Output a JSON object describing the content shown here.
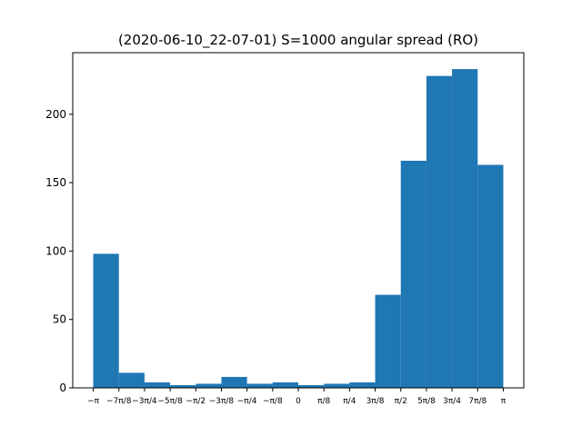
{
  "chart_data": {
    "type": "bar",
    "title": "(2020-06-10_22-07-01) S=1000 angular spread (RO)",
    "xlabel": "",
    "ylabel": "",
    "xlim": [
      -3.4558,
      3.4558
    ],
    "ylim": [
      0,
      245
    ],
    "grid": false,
    "bin_edges": [
      -3.14159,
      -2.74889,
      -2.35619,
      -1.9635,
      -1.5708,
      -1.1781,
      -0.7854,
      -0.3927,
      0.0,
      0.3927,
      0.7854,
      1.1781,
      1.5708,
      1.9635,
      2.35619,
      2.74889,
      3.14159
    ],
    "values": [
      98,
      11,
      4,
      2,
      3,
      8,
      3,
      4,
      2,
      3,
      4,
      68,
      166,
      228,
      233,
      163
    ],
    "bar_color": "#1f77b4",
    "yticks": [
      {
        "value": 0,
        "label": "0"
      },
      {
        "value": 50,
        "label": "50"
      },
      {
        "value": 100,
        "label": "100"
      },
      {
        "value": 150,
        "label": "150"
      },
      {
        "value": 200,
        "label": "200"
      }
    ],
    "xticks": [
      {
        "value": -3.14159,
        "label": "−π"
      },
      {
        "value": -2.74889,
        "label": "−7π/8"
      },
      {
        "value": -2.35619,
        "label": "−3π/4"
      },
      {
        "value": -1.9635,
        "label": "−5π/8"
      },
      {
        "value": -1.5708,
        "label": "−π/2"
      },
      {
        "value": -1.1781,
        "label": "−3π/8"
      },
      {
        "value": -0.7854,
        "label": "−π/4"
      },
      {
        "value": -0.3927,
        "label": "−π/8"
      },
      {
        "value": 0.0,
        "label": "0"
      },
      {
        "value": 0.3927,
        "label": "π/8"
      },
      {
        "value": 0.7854,
        "label": "π/4"
      },
      {
        "value": 1.1781,
        "label": "3π/8"
      },
      {
        "value": 1.5708,
        "label": "π/2"
      },
      {
        "value": 1.9635,
        "label": "5π/8"
      },
      {
        "value": 2.35619,
        "label": "3π/4"
      },
      {
        "value": 2.74889,
        "label": "7π/8"
      },
      {
        "value": 3.14159,
        "label": "π"
      }
    ]
  }
}
